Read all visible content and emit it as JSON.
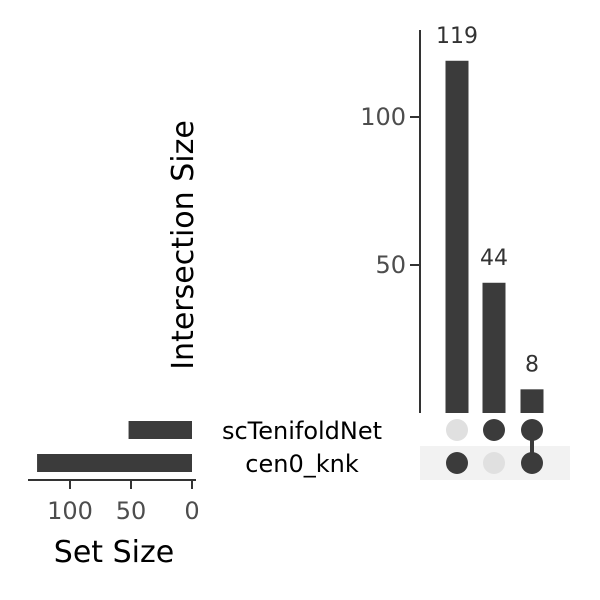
{
  "chart_data": {
    "type": "upset",
    "colors": {
      "bar": "#3b3b3b",
      "dot_active": "#3b3b3b",
      "dot_inactive": "#e0e0e0",
      "stripe": "#f2f2f2",
      "axis": "#333333"
    },
    "intersection_size": {
      "ylabel": "Intersection Size",
      "yticks": [
        50,
        100
      ],
      "values": [
        119,
        44,
        8
      ],
      "labels": [
        "119",
        "44",
        "8"
      ]
    },
    "sets": {
      "names": [
        "scTenifoldNet",
        "cen0_knk"
      ],
      "sizes": [
        52,
        127
      ],
      "xlabel": "Set Size",
      "xticks": [
        100,
        50,
        0
      ]
    },
    "matrix": [
      [
        false,
        true
      ],
      [
        true,
        false
      ],
      [
        true,
        true
      ]
    ]
  }
}
